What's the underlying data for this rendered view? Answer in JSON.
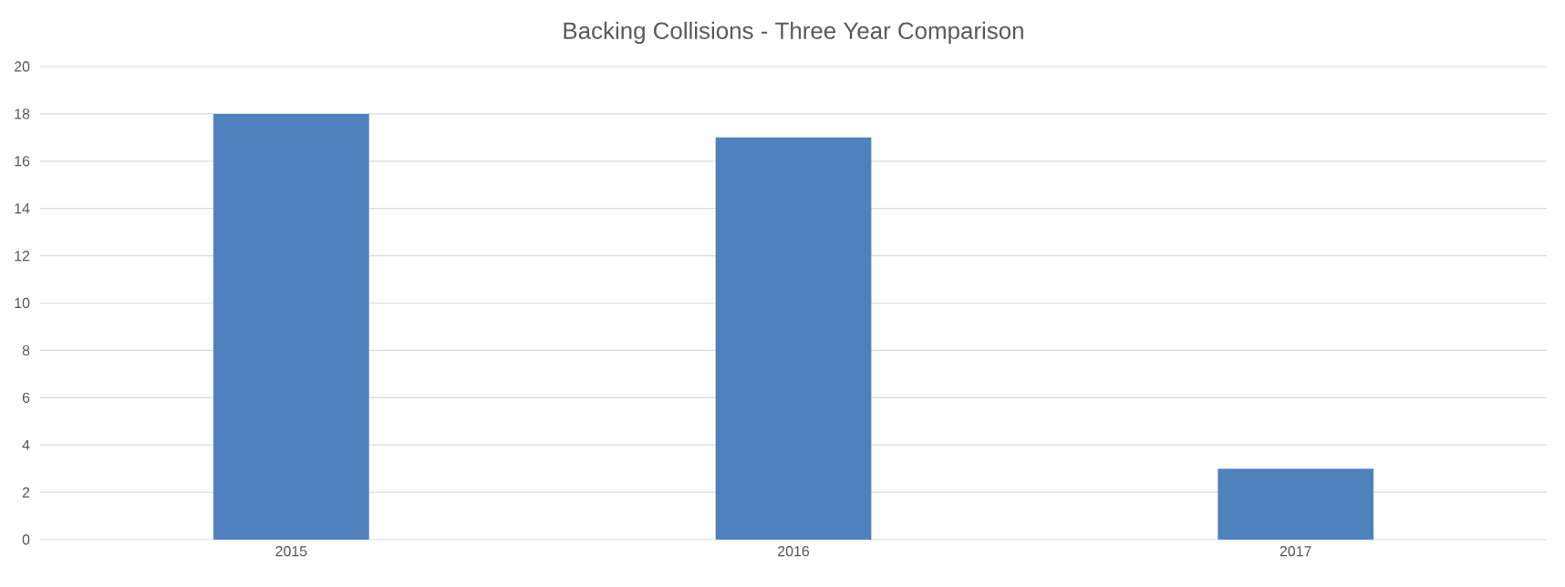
{
  "chart_data": {
    "type": "bar",
    "title": "Backing Collisions - Three Year Comparison",
    "categories": [
      "2015",
      "2016",
      "2017"
    ],
    "values": [
      18,
      17,
      3
    ],
    "color": "#4f81bd",
    "ylim": [
      0,
      20
    ],
    "yticks": [
      0,
      2,
      4,
      6,
      8,
      10,
      12,
      14,
      16,
      18,
      20
    ],
    "grid": "y"
  }
}
